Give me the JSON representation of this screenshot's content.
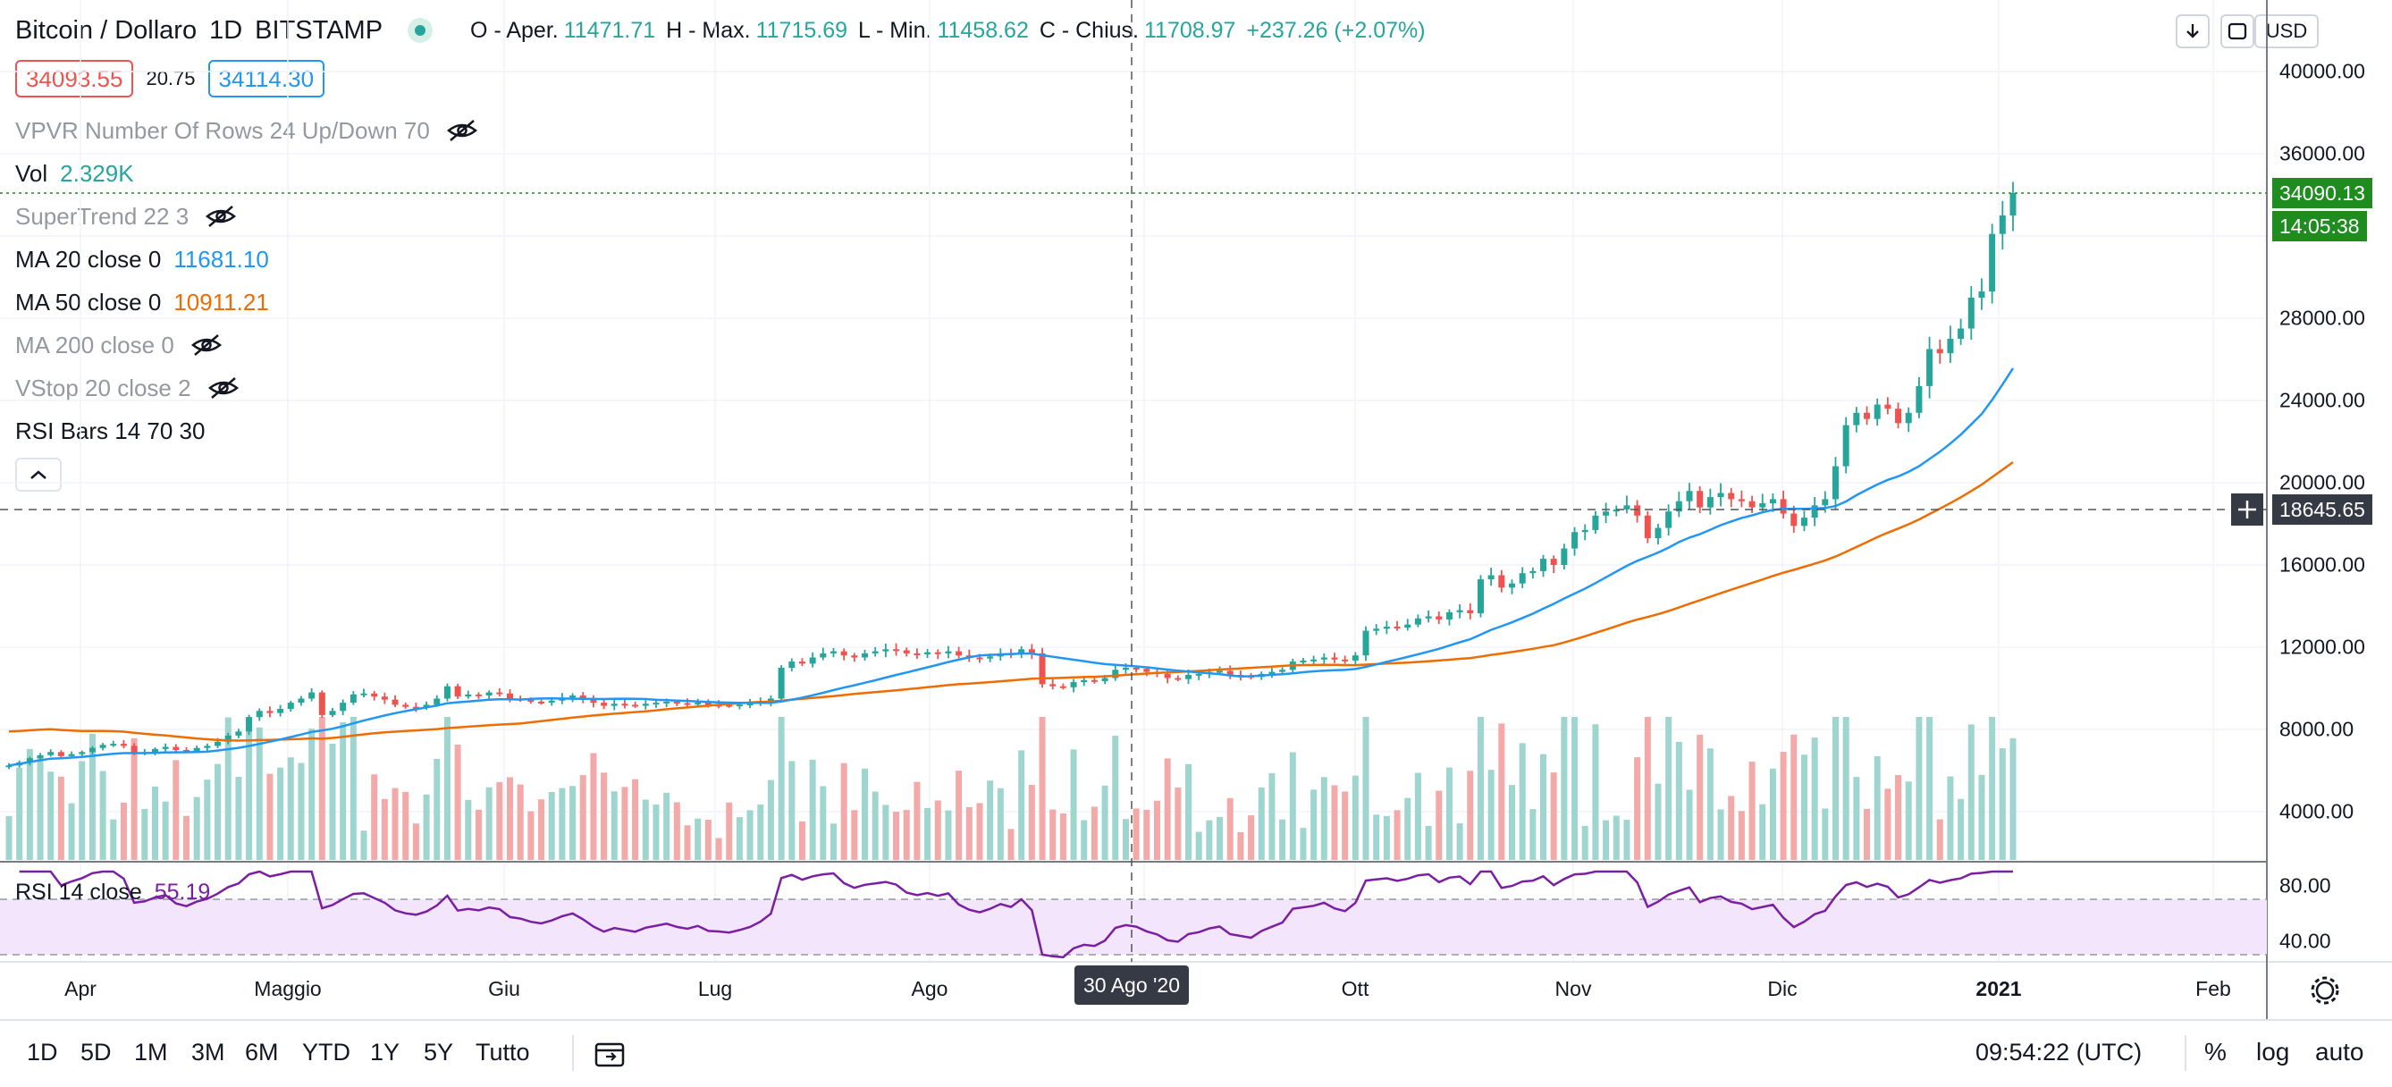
{
  "legend": {
    "symbol": "Bitcoin / Dollaro",
    "interval": "1D",
    "exchange": "BITSTAMP",
    "ohlc": {
      "open_label": "O - Aper.",
      "open": "11471.71",
      "high_label": "H - Max.",
      "high": "11715.69",
      "low_label": "L - Min.",
      "low": "11458.62",
      "close_label": "C - Chius.",
      "close": "11708.97",
      "change": "+237.26 (+2.07%)"
    },
    "bid": "34093.55",
    "spread": "20.75",
    "ask": "34114.30",
    "indicators": [
      {
        "name": "VPVR Number Of Rows 24 Up/Down 70",
        "value": "",
        "hidden": true
      },
      {
        "name": "Vol",
        "value": "2.329K",
        "hidden": false
      },
      {
        "name": "SuperTrend 22 3",
        "value": "",
        "hidden": true
      },
      {
        "name": "MA 20 close 0",
        "value": "11681.10",
        "hidden": false
      },
      {
        "name": "MA 50 close 0",
        "value": "10911.21",
        "hidden": false
      },
      {
        "name": "MA 200 close 0",
        "value": "",
        "hidden": true
      },
      {
        "name": "VStop 20 close 2",
        "value": "",
        "hidden": true
      },
      {
        "name": "RSI Bars 14 70 30",
        "value": "",
        "hidden": false
      }
    ]
  },
  "toolbar": {
    "currency": "USD",
    "download_icon": "arrow-down-icon",
    "fullscreen_icon": "fullscreen-icon"
  },
  "price_axis": {
    "labels": [
      "40000.00",
      "36000.00",
      "28000.00",
      "24000.00",
      "20000.00",
      "16000.00",
      "12000.00",
      "8000.00",
      "4000.00"
    ],
    "last_price": "34090.13",
    "countdown": "14:05:38",
    "crosshair_price": "18645.65",
    "colors": {
      "last": "#1e8c1e",
      "crosshair": "#363a45"
    }
  },
  "rsi": {
    "label": "RSI 14 close",
    "value": "55.19",
    "axis_labels": [
      "80.00",
      "40.00"
    ]
  },
  "time_axis": {
    "labels": [
      "Apr",
      "Maggio",
      "Giu",
      "Lug",
      "Ago",
      "Ott",
      "Nov",
      "Dic",
      "2021",
      "Feb"
    ],
    "crosshair_date": "30 Ago '20"
  },
  "bottom_bar": {
    "ranges": [
      "1D",
      "5D",
      "1M",
      "3M",
      "6M",
      "YTD",
      "1Y",
      "5Y",
      "Tutto"
    ],
    "clock": "09:54:22 (UTC)",
    "options": [
      "%",
      "log",
      "auto"
    ]
  },
  "colors": {
    "up": "#26a69a",
    "down": "#ef5350",
    "ma20": "#2196f3",
    "ma50": "#ef6c00",
    "rsi": "#7b1fa2",
    "rsi_band": "#f3e5fc"
  },
  "chart_data": {
    "type": "candlestick",
    "series_close": [
      6250,
      6400,
      6600,
      6750,
      6900,
      6700,
      6800,
      6900,
      7100,
      7250,
      7300,
      7200,
      6850,
      6900,
      7050,
      7150,
      7000,
      6950,
      7100,
      7200,
      7400,
      7700,
      7900,
      8600,
      8900,
      8800,
      9000,
      9300,
      9500,
      9800,
      8700,
      8900,
      9300,
      9700,
      9750,
      9600,
      9450,
      9200,
      9100,
      9050,
      9200,
      9500,
      10100,
      9600,
      9700,
      9650,
      9800,
      9750,
      9500,
      9450,
      9350,
      9300,
      9400,
      9550,
      9650,
      9500,
      9300,
      9150,
      9250,
      9200,
      9150,
      9250,
      9300,
      9350,
      9280,
      9240,
      9300,
      9200,
      9190,
      9170,
      9210,
      9260,
      9350,
      9500,
      11000,
      11300,
      11200,
      11500,
      11700,
      11800,
      11600,
      11500,
      11700,
      11800,
      11900,
      11850,
      11700,
      11650,
      11750,
      11700,
      11800,
      11600,
      11500,
      11450,
      11550,
      11700,
      11650,
      11900,
      11700,
      10200,
      10100,
      10050,
      10300,
      10400,
      10350,
      10500,
      10900,
      11000,
      10950,
      10800,
      10700,
      10500,
      10450,
      10650,
      10700,
      10800,
      10850,
      10650,
      10600,
      10550,
      10700,
      10800,
      10900,
      11300,
      11350,
      11400,
      11500,
      11400,
      11350,
      11600,
      12800,
      12900,
      13000,
      12950,
      13100,
      13400,
      13500,
      13350,
      13700,
      13800,
      13650,
      15300,
      15500,
      14900,
      15100,
      15600,
      15700,
      16300,
      16000,
      16800,
      17600,
      17700,
      18400,
      18600,
      18700,
      18900,
      18400,
      17300,
      17800,
      18600,
      19100,
      19600,
      18800,
      19300,
      19500,
      19200,
      19100,
      18800,
      19000,
      19200,
      18500,
      17900,
      18300,
      18900,
      19200,
      20800,
      22800,
      23400,
      23100,
      23800,
      23600,
      22900,
      23400,
      24700,
      26500,
      26300,
      27000,
      27500,
      29000,
      29300,
      32100,
      33000,
      34090
    ],
    "volume_max_k": 8500,
    "ylim": [
      0,
      42000
    ],
    "rsi_range": [
      30,
      85
    ]
  }
}
